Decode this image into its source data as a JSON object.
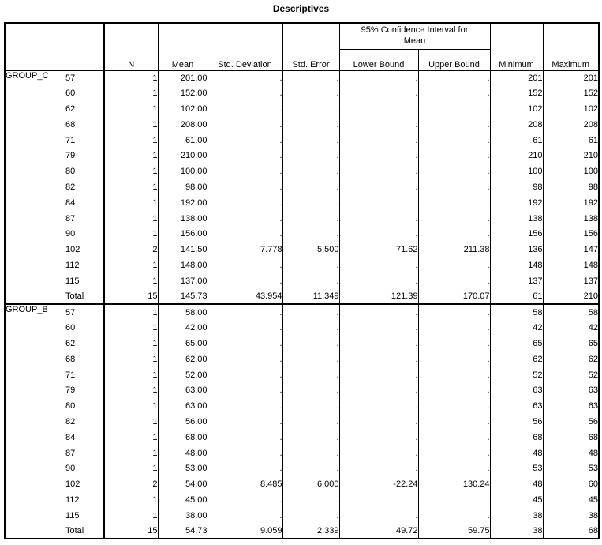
{
  "title": "Descriptives",
  "table": {
    "columns": {
      "n": "N",
      "mean": "Mean",
      "sd": "Std. Deviation",
      "se": "Std. Error",
      "ci": "95% Confidence Interval for Mean",
      "lower": "Lower Bound",
      "upper": "Upper Bound",
      "min": "Minimum",
      "max": "Maximum"
    },
    "missing_symbol": ".",
    "groups": [
      {
        "label": "GROUP_C",
        "rows": [
          [
            "57",
            "1",
            "201.00",
            ".",
            ".",
            ".",
            ".",
            "201",
            "201"
          ],
          [
            "60",
            "1",
            "152.00",
            ".",
            ".",
            ".",
            ".",
            "152",
            "152"
          ],
          [
            "62",
            "1",
            "102.00",
            ".",
            ".",
            ".",
            ".",
            "102",
            "102"
          ],
          [
            "68",
            "1",
            "208.00",
            ".",
            ".",
            ".",
            ".",
            "208",
            "208"
          ],
          [
            "71",
            "1",
            "61.00",
            ".",
            ".",
            ".",
            ".",
            "61",
            "61"
          ],
          [
            "79",
            "1",
            "210.00",
            ".",
            ".",
            ".",
            ".",
            "210",
            "210"
          ],
          [
            "80",
            "1",
            "100.00",
            ".",
            ".",
            ".",
            ".",
            "100",
            "100"
          ],
          [
            "82",
            "1",
            "98.00",
            ".",
            ".",
            ".",
            ".",
            "98",
            "98"
          ],
          [
            "84",
            "1",
            "192.00",
            ".",
            ".",
            ".",
            ".",
            "192",
            "192"
          ],
          [
            "87",
            "1",
            "138.00",
            ".",
            ".",
            ".",
            ".",
            "138",
            "138"
          ],
          [
            "90",
            "1",
            "156.00",
            ".",
            ".",
            ".",
            ".",
            "156",
            "156"
          ],
          [
            "102",
            "2",
            "141.50",
            "7.778",
            "5.500",
            "71.62",
            "211.38",
            "136",
            "147"
          ],
          [
            "112",
            "1",
            "148.00",
            ".",
            ".",
            ".",
            ".",
            "148",
            "148"
          ],
          [
            "115",
            "1",
            "137.00",
            ".",
            ".",
            ".",
            ".",
            "137",
            "137"
          ],
          [
            "Total",
            "15",
            "145.73",
            "43.954",
            "11.349",
            "121.39",
            "170.07",
            "61",
            "210"
          ]
        ]
      },
      {
        "label": "GROUP_B",
        "rows": [
          [
            "57",
            "1",
            "58.00",
            ".",
            ".",
            ".",
            ".",
            "58",
            "58"
          ],
          [
            "60",
            "1",
            "42.00",
            ".",
            ".",
            ".",
            ".",
            "42",
            "42"
          ],
          [
            "62",
            "1",
            "65.00",
            ".",
            ".",
            ".",
            ".",
            "65",
            "65"
          ],
          [
            "68",
            "1",
            "62.00",
            ".",
            ".",
            ".",
            ".",
            "62",
            "62"
          ],
          [
            "71",
            "1",
            "52.00",
            ".",
            ".",
            ".",
            ".",
            "52",
            "52"
          ],
          [
            "79",
            "1",
            "63.00",
            ".",
            ".",
            ".",
            ".",
            "63",
            "63"
          ],
          [
            "80",
            "1",
            "63.00",
            ".",
            ".",
            ".",
            ".",
            "63",
            "63"
          ],
          [
            "82",
            "1",
            "56.00",
            ".",
            ".",
            ".",
            ".",
            "56",
            "56"
          ],
          [
            "84",
            "1",
            "68.00",
            ".",
            ".",
            ".",
            ".",
            "68",
            "68"
          ],
          [
            "87",
            "1",
            "48.00",
            ".",
            ".",
            ".",
            ".",
            "48",
            "48"
          ],
          [
            "90",
            "1",
            "53.00",
            ".",
            ".",
            ".",
            ".",
            "53",
            "53"
          ],
          [
            "102",
            "2",
            "54.00",
            "8.485",
            "6.000",
            "-22.24",
            "130.24",
            "48",
            "60"
          ],
          [
            "112",
            "1",
            "45.00",
            ".",
            ".",
            ".",
            ".",
            "45",
            "45"
          ],
          [
            "115",
            "1",
            "38.00",
            ".",
            ".",
            ".",
            ".",
            "38",
            "38"
          ],
          [
            "Total",
            "15",
            "54.73",
            "9.059",
            "2.339",
            "49.72",
            "59.75",
            "38",
            "68"
          ]
        ]
      }
    ]
  }
}
